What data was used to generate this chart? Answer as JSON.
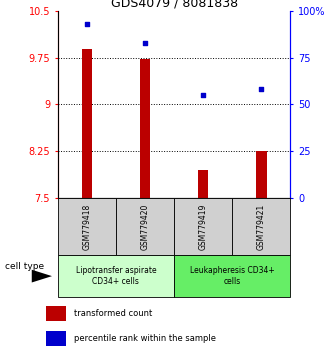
{
  "title": "GDS4079 / 8081838",
  "samples": [
    "GSM779418",
    "GSM779420",
    "GSM779419",
    "GSM779421"
  ],
  "bar_values": [
    9.88,
    9.72,
    7.95,
    8.25
  ],
  "scatter_values": [
    93,
    83,
    55,
    58
  ],
  "ylim_left": [
    7.5,
    10.5
  ],
  "ylim_right": [
    0,
    100
  ],
  "yticks_left": [
    7.5,
    8.25,
    9.0,
    9.75,
    10.5
  ],
  "ytick_labels_left": [
    "7.5",
    "8.25",
    "9",
    "9.75",
    "10.5"
  ],
  "yticks_right": [
    0,
    25,
    50,
    75,
    100
  ],
  "ytick_labels_right": [
    "0",
    "25",
    "50",
    "75",
    "100%"
  ],
  "bar_color": "#bb0000",
  "scatter_color": "#0000cc",
  "bar_width": 0.18,
  "group_labels": [
    "Lipotransfer aspirate\nCD34+ cells",
    "Leukapheresis CD34+\ncells"
  ],
  "group_color1": "#ccffcc",
  "group_color2": "#66ee66",
  "cell_type_label": "cell type",
  "legend_bar_label": "transformed count",
  "legend_scatter_label": "percentile rank within the sample",
  "title_fontsize": 9,
  "tick_fontsize": 7,
  "sample_fontsize": 5.5,
  "group_fontsize": 5.5
}
